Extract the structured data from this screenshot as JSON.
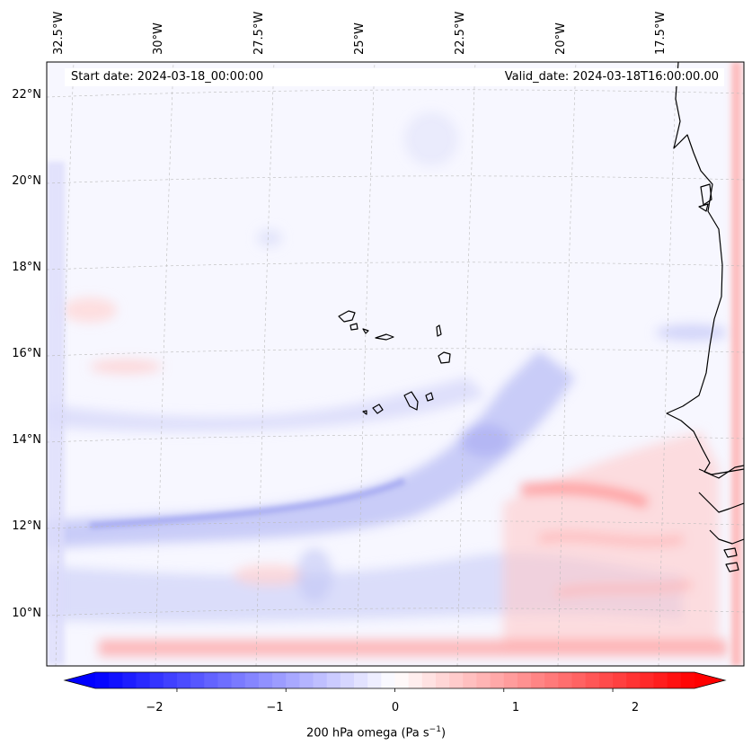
{
  "map": {
    "start_date": "Start date: 2024-03-18_00:00:00",
    "valid_date": "Valid_date: 2024-03-18T16:00:00.00",
    "extent": {
      "lon_min": -33.0,
      "lon_max": -16.0,
      "lat_min": 9.0,
      "lat_max": 22.75
    },
    "lon_labels": [
      "32.5°W",
      "30°W",
      "27.5°W",
      "25°W",
      "22.5°W",
      "20°W",
      "17.5°W"
    ],
    "lat_labels": [
      "22°N",
      "20°N",
      "18°N",
      "16°N",
      "14°N",
      "12°N",
      "10°N"
    ],
    "coastline_color": "#000000",
    "gridline_color": "#bbbbbb"
  },
  "colorbar": {
    "label_prefix": "200 hPa omega (Pa s",
    "label_sup": "−1",
    "label_suffix": ")",
    "ticks": [
      "−2",
      "−1",
      "0",
      "1",
      "2"
    ],
    "range": [
      -2.75,
      2.75
    ],
    "cmap": "bwr",
    "color_low": "#0000ff",
    "color_mid": "#ffffff",
    "color_high": "#ff0000"
  }
}
